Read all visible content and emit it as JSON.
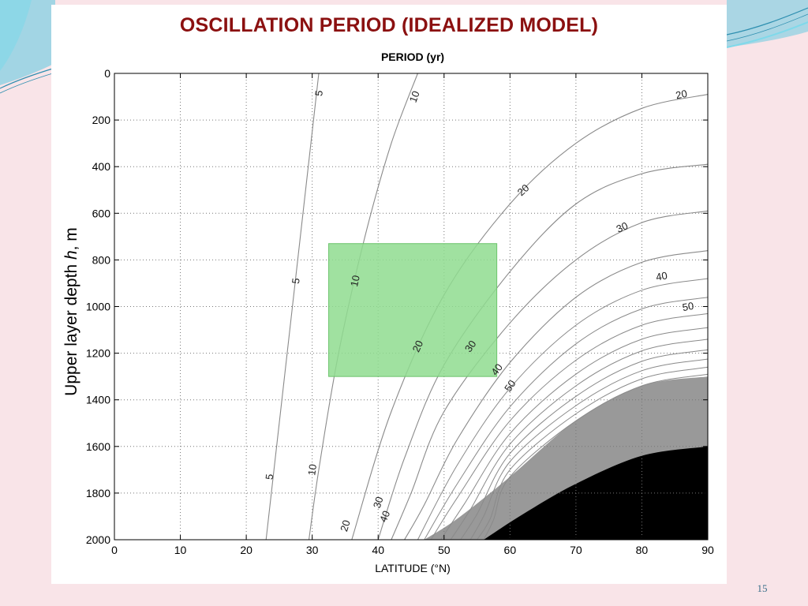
{
  "slide": {
    "title": "OSCILLATION PERIOD (IDEALIZED MODEL)",
    "number": "15",
    "colors": {
      "background": "#f9e4e8",
      "title": "#8b1010",
      "accent": "#5bc8e0"
    }
  },
  "chart_data": {
    "type": "contour",
    "title": "PERIOD (yr)",
    "xlabel": "LATITUDE (°N)",
    "ylabel": {
      "prefix": "Upper layer depth ",
      "symbol": "h",
      "suffix": ",  m"
    },
    "xlim": [
      0,
      90
    ],
    "ylim": [
      0,
      2000
    ],
    "y_inverted": true,
    "xticks": [
      0,
      10,
      20,
      30,
      40,
      50,
      60,
      70,
      80,
      90
    ],
    "yticks": [
      0,
      200,
      400,
      600,
      800,
      1000,
      1200,
      1400,
      1600,
      1800,
      2000
    ],
    "grid": "dotted",
    "contours": [
      {
        "level": 5,
        "points": [
          [
            31,
            0
          ],
          [
            29,
            500
          ],
          [
            27,
            1000
          ],
          [
            25,
            1500
          ],
          [
            23,
            2000
          ]
        ]
      },
      {
        "level": 10,
        "points": [
          [
            46,
            0
          ],
          [
            42,
            300
          ],
          [
            38,
            700
          ],
          [
            34,
            1200
          ],
          [
            31,
            1700
          ],
          [
            29.5,
            2000
          ]
        ]
      },
      {
        "level": 20,
        "points": [
          [
            90,
            90
          ],
          [
            80,
            150
          ],
          [
            70,
            300
          ],
          [
            60,
            560
          ],
          [
            50,
            950
          ],
          [
            42,
            1450
          ],
          [
            36,
            2000
          ]
        ]
      },
      {
        "level": 30,
        "points": [
          [
            90,
            390
          ],
          [
            80,
            430
          ],
          [
            70,
            560
          ],
          [
            60,
            850
          ],
          [
            50,
            1250
          ],
          [
            44,
            1650
          ],
          [
            40,
            2000
          ]
        ]
      },
      {
        "level": 40,
        "points": [
          [
            90,
            590
          ],
          [
            80,
            640
          ],
          [
            70,
            800
          ],
          [
            60,
            1070
          ],
          [
            50,
            1450
          ],
          [
            45,
            1800
          ],
          [
            42,
            2000
          ]
        ]
      },
      {
        "level": 50,
        "points": [
          [
            90,
            760
          ],
          [
            80,
            810
          ],
          [
            70,
            960
          ],
          [
            60,
            1240
          ],
          [
            52,
            1570
          ],
          [
            47,
            1850
          ],
          [
            44,
            2000
          ]
        ]
      }
    ],
    "extra_contours": [
      [
        [
          90,
          880
        ],
        [
          80,
          930
        ],
        [
          70,
          1080
        ],
        [
          60,
          1350
        ],
        [
          52,
          1680
        ],
        [
          46,
          2000
        ]
      ],
      [
        [
          90,
          960
        ],
        [
          80,
          1010
        ],
        [
          70,
          1160
        ],
        [
          60,
          1430
        ],
        [
          52,
          1760
        ],
        [
          47,
          2000
        ]
      ],
      [
        [
          90,
          1030
        ],
        [
          80,
          1080
        ],
        [
          70,
          1230
        ],
        [
          60,
          1490
        ],
        [
          52,
          1820
        ],
        [
          48,
          2000
        ]
      ],
      [
        [
          90,
          1090
        ],
        [
          80,
          1140
        ],
        [
          70,
          1290
        ],
        [
          60,
          1545
        ],
        [
          53,
          1850
        ],
        [
          49.5,
          2000
        ]
      ],
      [
        [
          90,
          1140
        ],
        [
          80,
          1190
        ],
        [
          70,
          1340
        ],
        [
          60,
          1590
        ],
        [
          54,
          1870
        ],
        [
          51,
          2000
        ]
      ],
      [
        [
          90,
          1185
        ],
        [
          80,
          1235
        ],
        [
          70,
          1385
        ],
        [
          60,
          1630
        ],
        [
          55,
          1890
        ],
        [
          52.5,
          2000
        ]
      ],
      [
        [
          90,
          1225
        ],
        [
          80,
          1275
        ],
        [
          70,
          1425
        ],
        [
          60,
          1665
        ],
        [
          56,
          1900
        ],
        [
          54,
          2000
        ]
      ],
      [
        [
          90,
          1260
        ],
        [
          80,
          1310
        ],
        [
          70,
          1460
        ],
        [
          60,
          1700
        ],
        [
          57,
          1910
        ],
        [
          55,
          2000
        ]
      ],
      [
        [
          90,
          1290
        ],
        [
          80,
          1340
        ],
        [
          70,
          1490
        ],
        [
          60,
          1730
        ],
        [
          57.5,
          1915
        ],
        [
          56,
          2000
        ]
      ]
    ],
    "contour_labels": [
      {
        "text": "5",
        "x": 31,
        "y": 85
      },
      {
        "text": "5",
        "x": 27.5,
        "y": 890
      },
      {
        "text": "5",
        "x": 23.5,
        "y": 1730
      },
      {
        "text": "10",
        "x": 45.5,
        "y": 100
      },
      {
        "text": "10",
        "x": 36.5,
        "y": 890
      },
      {
        "text": "10",
        "x": 30,
        "y": 1700
      },
      {
        "text": "20",
        "x": 86,
        "y": 90
      },
      {
        "text": "20",
        "x": 62,
        "y": 500
      },
      {
        "text": "20",
        "x": 46,
        "y": 1170
      },
      {
        "text": "20",
        "x": 35,
        "y": 1940
      },
      {
        "text": "30",
        "x": 77,
        "y": 660
      },
      {
        "text": "30",
        "x": 54,
        "y": 1170
      },
      {
        "text": "30",
        "x": 40,
        "y": 1840
      },
      {
        "text": "40",
        "x": 83,
        "y": 870
      },
      {
        "text": "40",
        "x": 58,
        "y": 1270
      },
      {
        "text": "40",
        "x": 41,
        "y": 1900
      },
      {
        "text": "50",
        "x": 87,
        "y": 1000
      },
      {
        "text": "50",
        "x": 60,
        "y": 1340
      }
    ],
    "regions": {
      "gray": {
        "color": "#999999",
        "boundary": [
          [
            90,
            1300
          ],
          [
            80,
            1340
          ],
          [
            70,
            1490
          ],
          [
            60,
            1730
          ],
          [
            52,
            1910
          ],
          [
            47,
            2000
          ]
        ]
      },
      "black": {
        "color": "#000000",
        "boundary": [
          [
            90,
            1600
          ],
          [
            80,
            1640
          ],
          [
            70,
            1760
          ],
          [
            62,
            1890
          ],
          [
            56,
            2000
          ]
        ]
      }
    },
    "highlight_box": {
      "x": [
        32.5,
        58
      ],
      "y": [
        730,
        1300
      ],
      "color": "#8fdc8f"
    }
  }
}
